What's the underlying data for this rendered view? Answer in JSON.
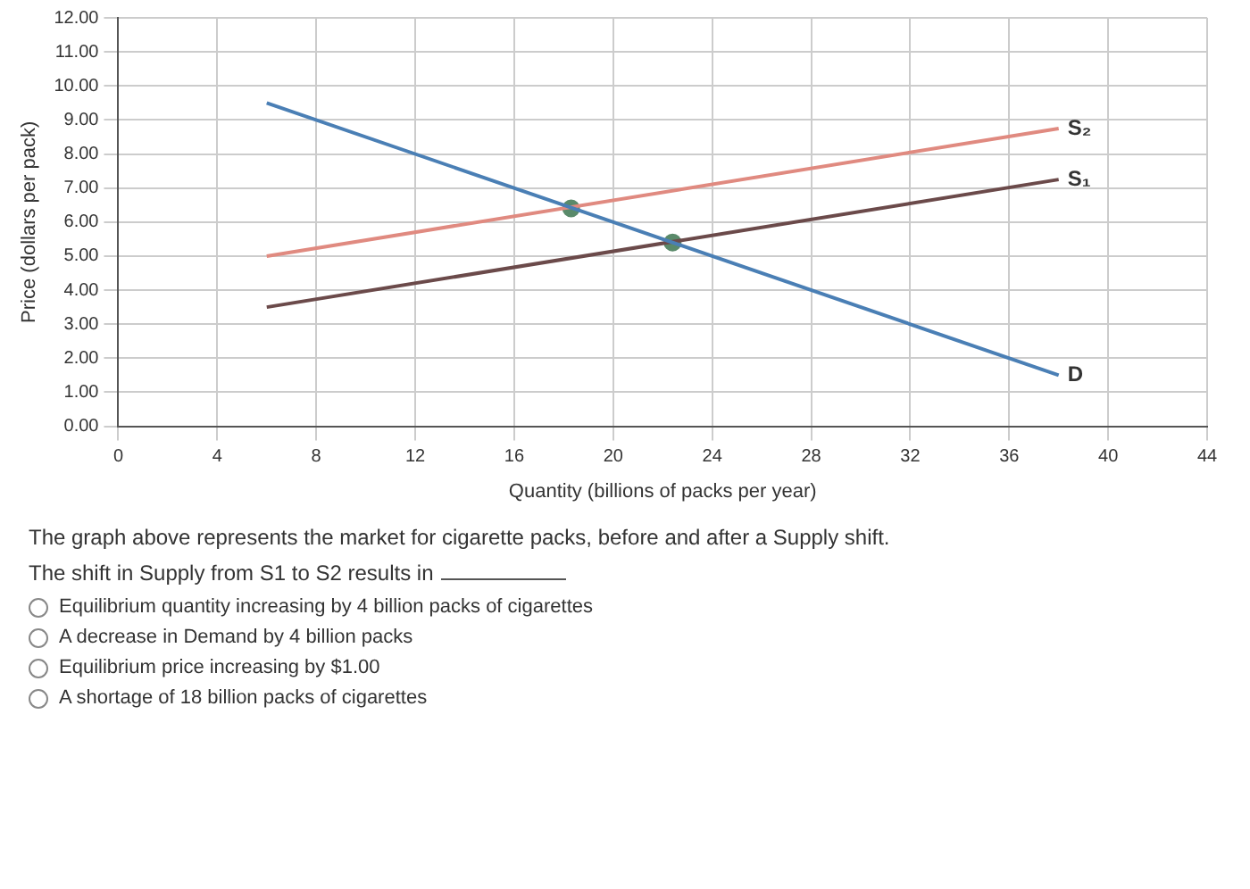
{
  "chart_data": {
    "type": "line",
    "xlabel": "Quantity (billions of packs per year)",
    "ylabel": "Price (dollars per pack)",
    "xlim": [
      0,
      44
    ],
    "xticks": [
      0,
      4,
      8,
      12,
      16,
      20,
      24,
      28,
      32,
      36,
      40,
      44
    ],
    "ylim": [
      0,
      12
    ],
    "yticks": [
      {
        "value": 0,
        "label": "0.00"
      },
      {
        "value": 1,
        "label": "1.00"
      },
      {
        "value": 2,
        "label": "2.00"
      },
      {
        "value": 3,
        "label": "3.00"
      },
      {
        "value": 4,
        "label": "4.00"
      },
      {
        "value": 5,
        "label": "5.00"
      },
      {
        "value": 6,
        "label": "6.00"
      },
      {
        "value": 7,
        "label": "7.00"
      },
      {
        "value": 8,
        "label": "8.00"
      },
      {
        "value": 9,
        "label": "9.00"
      },
      {
        "value": 10,
        "label": "10.00"
      },
      {
        "value": 11,
        "label": "11.00"
      },
      {
        "value": 12,
        "label": "12.00"
      }
    ],
    "grid": true,
    "legend": false,
    "marker": "none",
    "line_style": "solid",
    "series": [
      {
        "name": "D",
        "color": "#4a7fb5",
        "x": [
          6,
          38
        ],
        "values": [
          9.5,
          1.5
        ]
      },
      {
        "name": "S₁",
        "color": "#6b4a4a",
        "x": [
          6,
          38
        ],
        "values": [
          3.5,
          7.25
        ]
      },
      {
        "name": "S₂",
        "color": "#e08a80",
        "x": [
          6,
          38
        ],
        "values": [
          5,
          8.75
        ]
      },
      {
        "type": "scatter",
        "marker": "circle",
        "color": "#5a8a6a",
        "x": [
          22.4,
          18.3
        ],
        "values": [
          5.4,
          6.4
        ]
      }
    ],
    "annotations": [
      "The graph above represents the market for cigarette packs, before and after a Supply shift.",
      "The shift in Supply from S1 to S2 results in",
      "Equilibrium quantity increasing by 4 billion packs of cigarettes",
      "A decrease in Demand by 4 billion packs",
      "Equilibrium price increasing by $1.00",
      "A shortage of 18 billion packs of cigarettes"
    ]
  }
}
